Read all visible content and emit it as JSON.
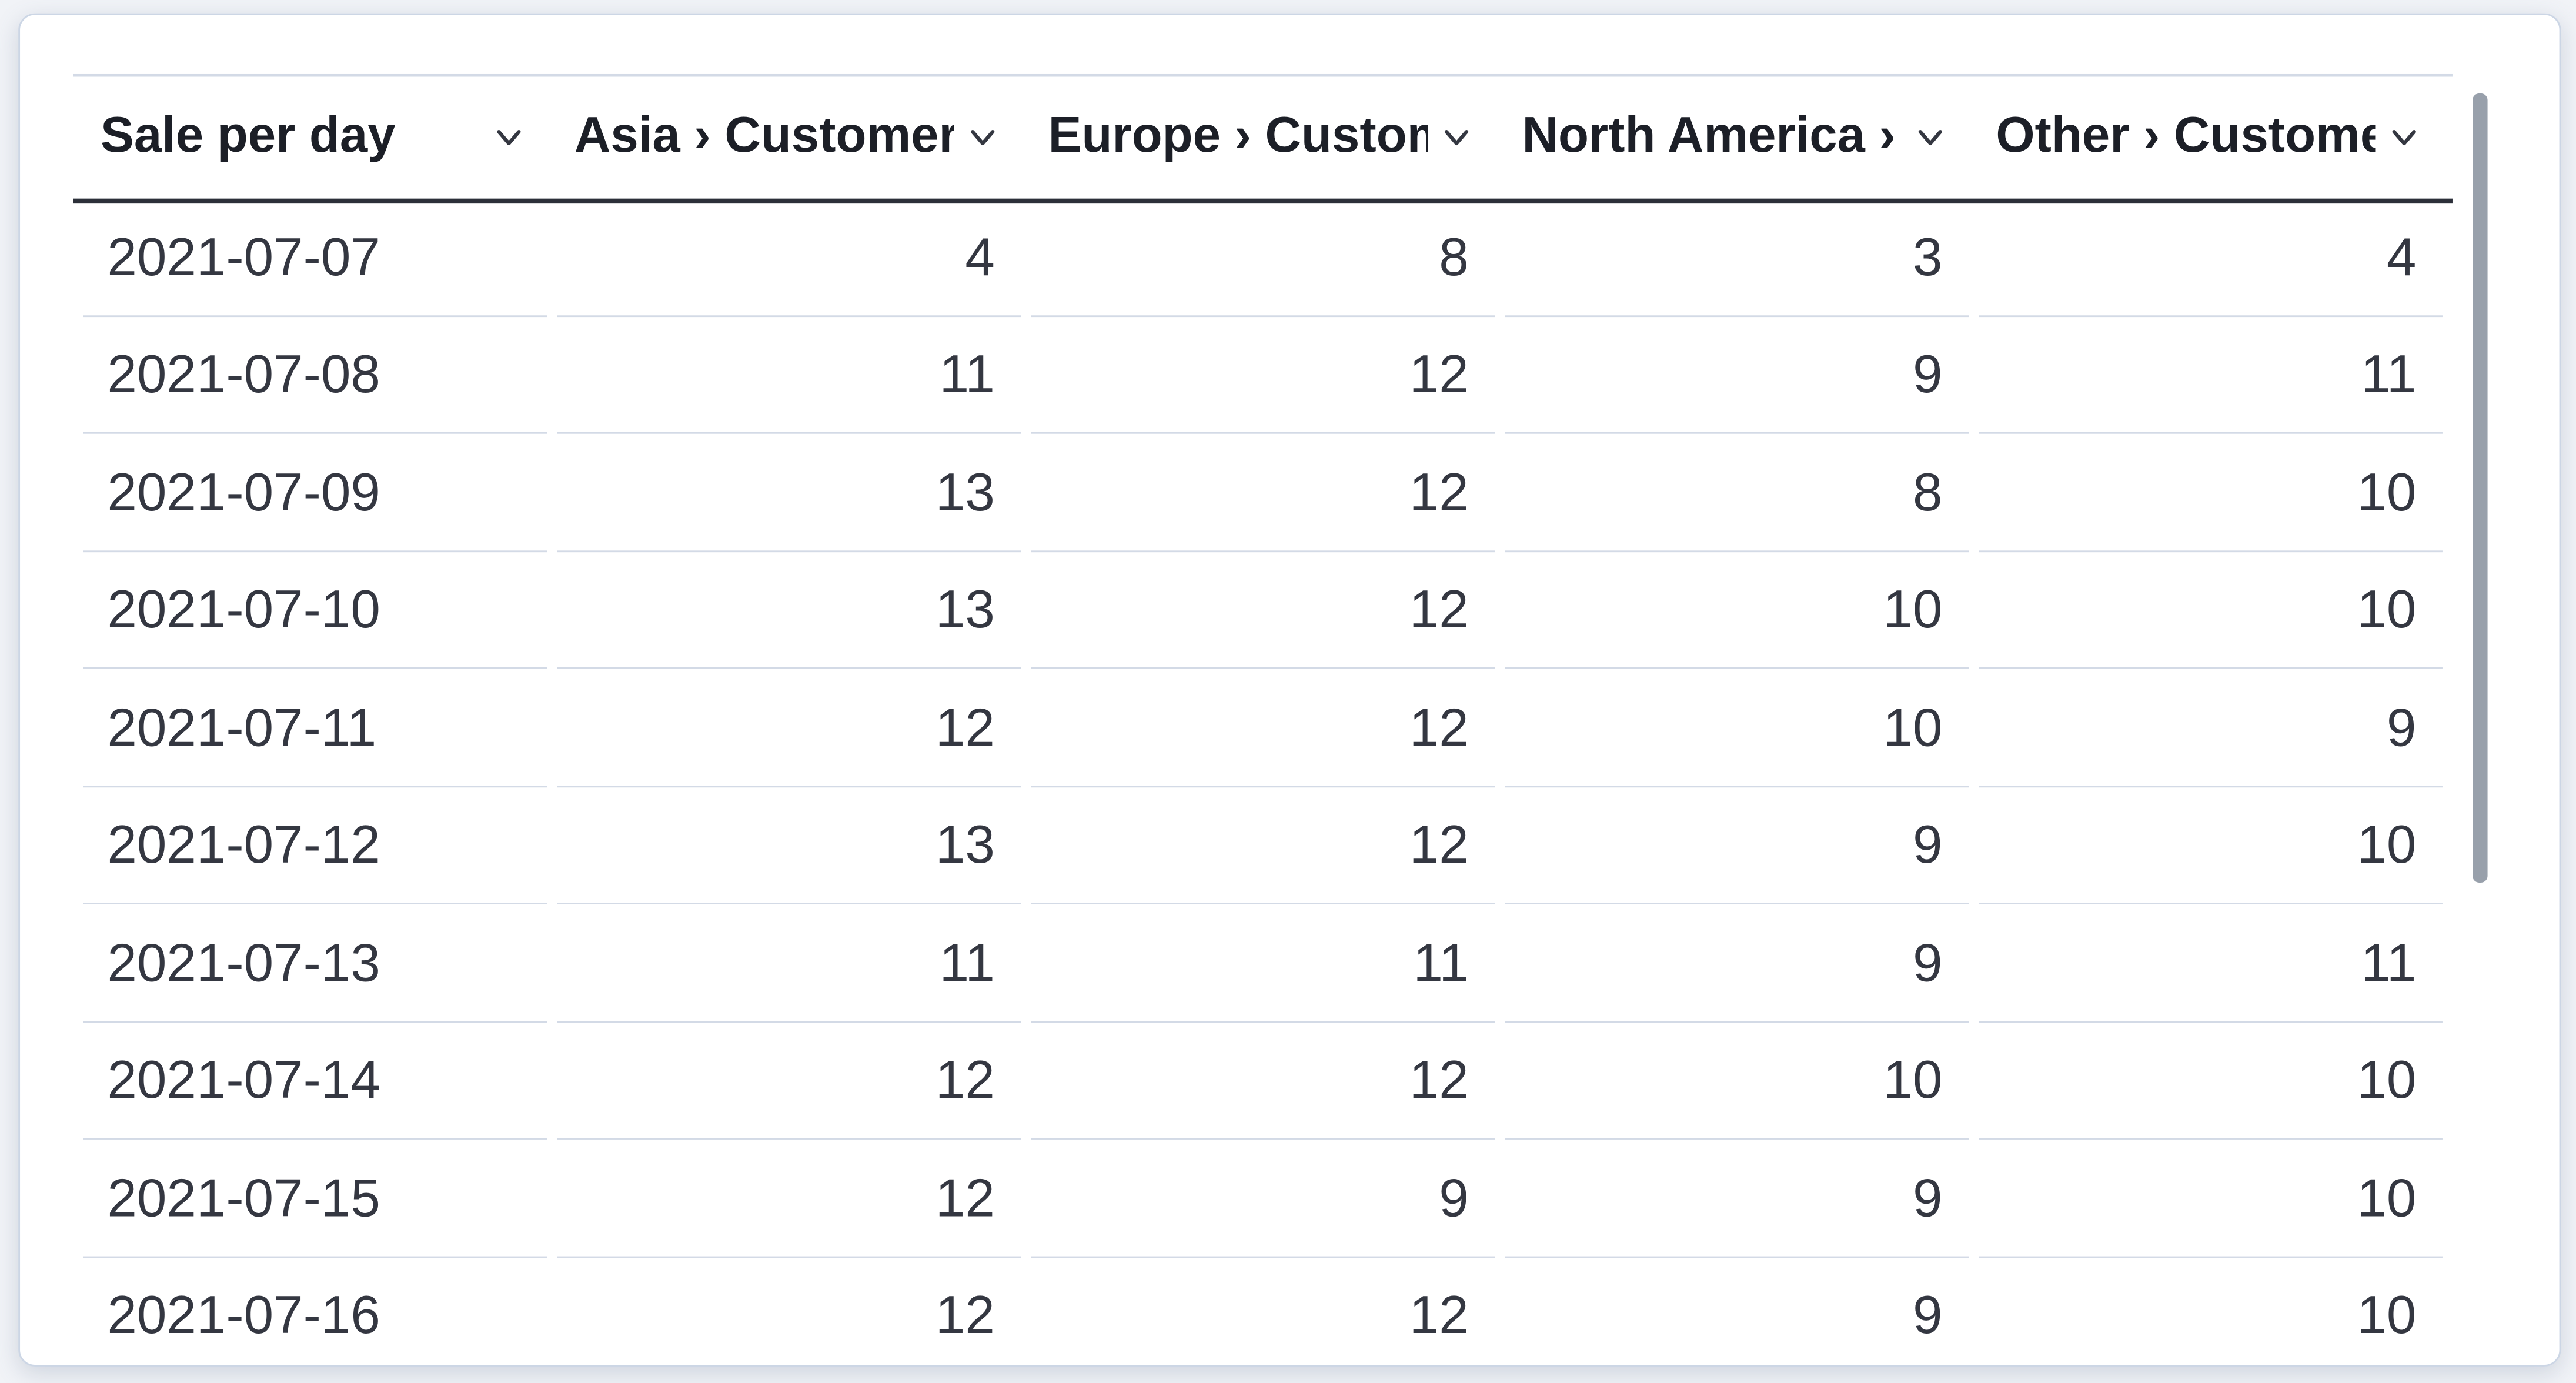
{
  "panel": {
    "type": "data-table-visualization",
    "colors": {
      "page_background": "#f1f3f7",
      "card_background": "#ffffff",
      "card_border": "#ccd6e5",
      "header_text": "#1c1f27",
      "body_text": "#343741",
      "header_underline": "#2c3039",
      "row_separator": "#d3dae6",
      "scrollbar_thumb": "#98a0ab"
    }
  },
  "table": {
    "columns": [
      {
        "label": "Sale per day",
        "align": "left",
        "menu_icon": "chevron-down-icon"
      },
      {
        "label": "Asia › Customers",
        "align": "right",
        "menu_icon": "chevron-down-icon"
      },
      {
        "label": "Europe › Customers",
        "align": "right",
        "menu_icon": "chevron-down-icon"
      },
      {
        "label": "North America › Customers",
        "align": "right",
        "menu_icon": "chevron-down-icon"
      },
      {
        "label": "Other › Customers",
        "align": "right",
        "menu_icon": "chevron-down-icon"
      }
    ],
    "rows": [
      [
        "2021-07-07",
        "4",
        "8",
        "3",
        "4"
      ],
      [
        "2021-07-08",
        "11",
        "12",
        "9",
        "11"
      ],
      [
        "2021-07-09",
        "13",
        "12",
        "8",
        "10"
      ],
      [
        "2021-07-10",
        "13",
        "12",
        "10",
        "10"
      ],
      [
        "2021-07-11",
        "12",
        "12",
        "10",
        "9"
      ],
      [
        "2021-07-12",
        "13",
        "12",
        "9",
        "10"
      ],
      [
        "2021-07-13",
        "11",
        "11",
        "9",
        "11"
      ],
      [
        "2021-07-14",
        "12",
        "12",
        "10",
        "10"
      ],
      [
        "2021-07-15",
        "12",
        "9",
        "9",
        "10"
      ],
      [
        "2021-07-16",
        "12",
        "12",
        "9",
        "10"
      ]
    ]
  }
}
